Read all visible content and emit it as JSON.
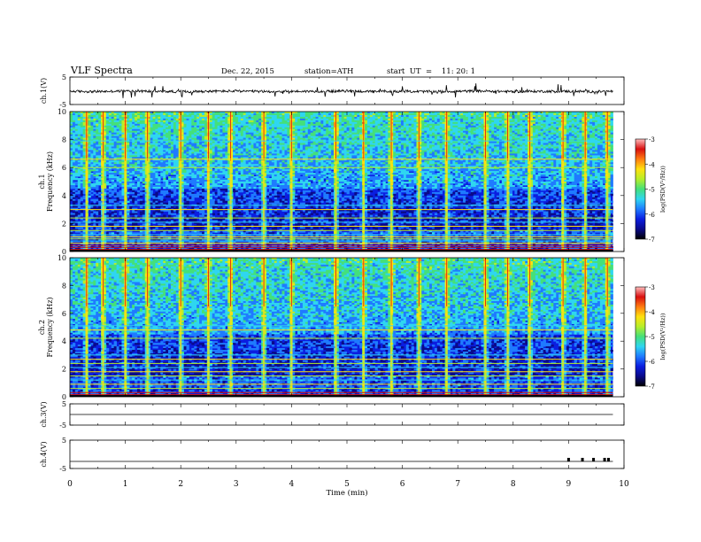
{
  "header": {
    "title": "VLF  Spectra",
    "date": "Dec. 22, 2015",
    "station": "station=ATH",
    "start": "start  UT  =    11: 20: 1"
  },
  "colors": {
    "palette": [
      "#000000",
      "#0a0a8a",
      "#0b1ee0",
      "#1f7bff",
      "#2fd6f0",
      "#44e07a",
      "#b6ee2a",
      "#ffe10f",
      "#ff7b10",
      "#d90f0f",
      "#ffbcbc"
    ]
  },
  "chart_data": [
    {
      "type": "line",
      "panel": "ch1",
      "ylabel": "ch.1(V)",
      "ylim": [
        -5,
        5
      ],
      "yticks": [
        "5",
        "-5"
      ],
      "description_level": "waveform near -0.2 V with spikes",
      "x": [
        0,
        0.5,
        1,
        1.5,
        2,
        2.5,
        3,
        3.5,
        4,
        4.5,
        5,
        5.5,
        6,
        6.5,
        7,
        7.5,
        8,
        8.5,
        9,
        9.5,
        9.8
      ],
      "y": [
        -0.2,
        -0.3,
        -0.1,
        -0.2,
        -0.3,
        -0.2,
        -0.1,
        -0.3,
        -0.2,
        -0.2,
        -0.1,
        -0.3,
        -0.2,
        -0.3,
        -0.2,
        -0.1,
        -0.3,
        -0.2,
        -0.2,
        -0.3,
        -0.2
      ]
    },
    {
      "type": "heatmap",
      "panel": "ch1-spectrogram",
      "ylabel_lines": [
        "ch.1",
        "Frequency  (kHz)"
      ],
      "ylim": [
        0,
        10
      ],
      "yticks": [
        "0",
        "2",
        "4",
        "6",
        "8",
        "10"
      ],
      "xlim": [
        0,
        9.8
      ],
      "colorbar": {
        "label": "log(PSD(V²/Hz))",
        "range": [
          -7,
          -3
        ],
        "ticks": [
          "-3",
          "-4",
          "-5",
          "-6",
          "-7"
        ]
      },
      "harmonic_lines_khz": [
        0.15,
        0.3,
        0.45,
        0.6,
        0.75,
        0.9,
        1.05,
        1.2,
        1.5,
        1.8,
        2.1,
        2.4,
        3.0,
        3.3,
        6.0,
        6.6,
        7.9
      ],
      "bursts_min": [
        0.3,
        0.6,
        1.0,
        1.4,
        2.0,
        2.5,
        2.9,
        3.5,
        4.0,
        4.8,
        5.3,
        5.8,
        6.3,
        6.8,
        7.5,
        7.9,
        8.3,
        8.9,
        9.3,
        9.7
      ]
    },
    {
      "type": "heatmap",
      "panel": "ch2-spectrogram",
      "ylabel_lines": [
        "ch.2",
        "Frequency  (kHz)"
      ],
      "ylim": [
        0,
        10
      ],
      "yticks": [
        "0",
        "2",
        "4",
        "6",
        "8",
        "10"
      ],
      "xlim": [
        0,
        9.8
      ],
      "colorbar": {
        "label": "log(PSD(V²/Hz))",
        "range": [
          -7,
          -3
        ],
        "ticks": [
          "-3",
          "-4",
          "-5",
          "-6",
          "-7"
        ]
      },
      "harmonic_lines_khz": [
        0.15,
        0.3,
        0.6,
        0.9,
        1.2,
        1.5,
        1.8,
        2.1,
        2.4,
        2.7,
        3.0,
        4.2,
        4.8,
        5.1
      ],
      "bursts_min": [
        0.3,
        0.6,
        1.0,
        1.4,
        2.0,
        2.5,
        2.9,
        3.5,
        4.0,
        4.8,
        5.3,
        5.8,
        6.3,
        6.8,
        7.5,
        7.9,
        8.3,
        8.9,
        9.3,
        9.7
      ]
    },
    {
      "type": "line",
      "panel": "ch3",
      "ylabel": "ch.3(V)",
      "ylim": [
        -5,
        5
      ],
      "yticks": [
        "5",
        "-5"
      ],
      "x": [
        0,
        9.8
      ],
      "y": [
        0,
        0
      ]
    },
    {
      "type": "line",
      "panel": "ch4",
      "ylabel": "ch.4(V)",
      "ylim": [
        -5,
        5
      ],
      "yticks": [
        "5",
        "-5"
      ],
      "x": [
        0,
        9.8
      ],
      "y": [
        -2.5,
        -2.5
      ],
      "pulses_min": [
        9.0,
        9.25,
        9.45,
        9.65,
        9.72
      ]
    }
  ],
  "xaxis": {
    "label": "Time  (min)",
    "xlim": [
      0,
      10
    ],
    "ticks": [
      "0",
      "1",
      "2",
      "3",
      "4",
      "5",
      "6",
      "7",
      "8",
      "9",
      "10"
    ]
  }
}
